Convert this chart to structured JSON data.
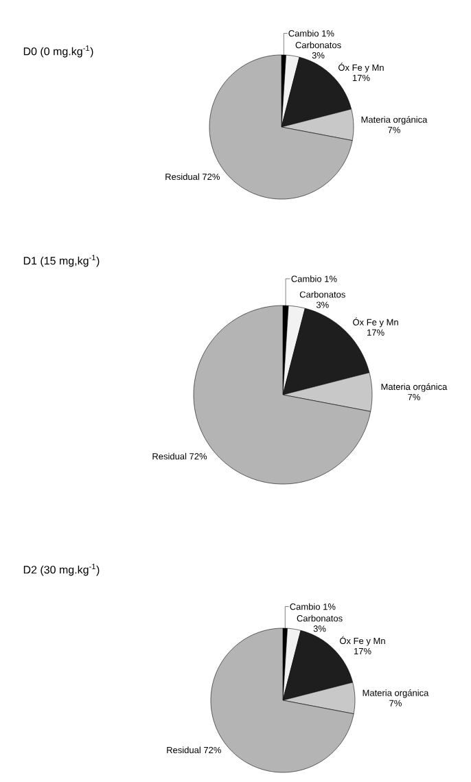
{
  "chart_data": [
    {
      "type": "pie",
      "title": "D0 (0 mg.kg$^{-1}$)",
      "categories": [
        "Cambio",
        "Carbonatos",
        "Óx Fe y Mn",
        "Materia orgánica",
        "Residual"
      ],
      "values": [
        1,
        3,
        17,
        7,
        72
      ],
      "value_labels": [
        "1%",
        "3%",
        "17%",
        "7%",
        "72%"
      ],
      "colors": [
        "#000000",
        "#f2f2f2",
        "#1e1e1e",
        "#c8c8c8",
        "#b4b4b4"
      ]
    },
    {
      "type": "pie",
      "title": "D1 (15 mg,kg$^{-1}$)",
      "categories": [
        "Cambio",
        "Carbonatos",
        "Óx Fe y Mn",
        "Materia orgánica",
        "Residual"
      ],
      "values": [
        1,
        3,
        17,
        7,
        72
      ],
      "value_labels": [
        "1%",
        "3%",
        "17%",
        "7%",
        "72%"
      ],
      "colors": [
        "#000000",
        "#f2f2f2",
        "#1e1e1e",
        "#c8c8c8",
        "#b4b4b4"
      ]
    },
    {
      "type": "pie",
      "title": "D2 (30 mg.kg$^{-1}$)",
      "categories": [
        "Cambio",
        "Carbonatos",
        "Óx Fe y Mn",
        "Materia orgánica",
        "Residual"
      ],
      "values": [
        1,
        3,
        17,
        7,
        72
      ],
      "value_labels": [
        "1%",
        "3%",
        "17%",
        "7%",
        "72%"
      ],
      "colors": [
        "#000000",
        "#f2f2f2",
        "#1e1e1e",
        "#c8c8c8",
        "#b4b4b4"
      ]
    }
  ]
}
